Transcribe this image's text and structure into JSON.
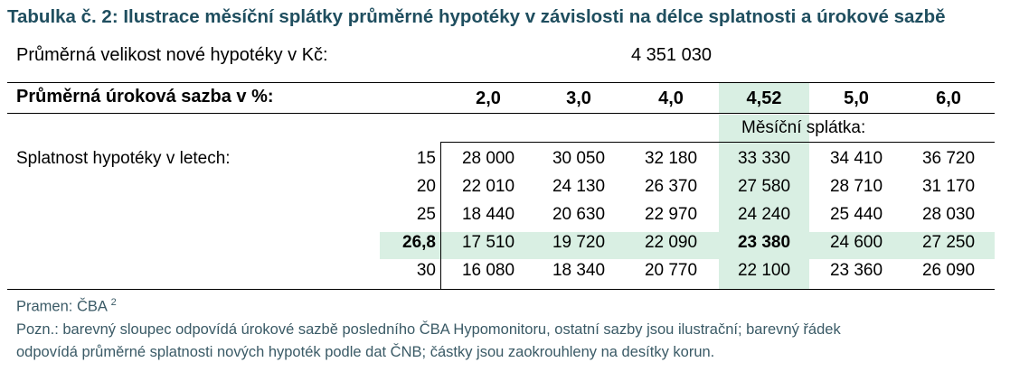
{
  "title": "Tabulka č. 2: Ilustrace měsíční splátky průměrné hypotéky v závislosti na délce splatnosti a úrokové sazbě",
  "avg_mortgage": {
    "label": "Průměrná velikost nové hypotéky v Kč:",
    "value": "4 351 030"
  },
  "rate_row": {
    "label": "Průměrná úroková sazba v %:",
    "rates": [
      "2,0",
      "3,0",
      "4,0",
      "4,52",
      "5,0",
      "6,0"
    ]
  },
  "payment_header": "Měsíční splátka:",
  "term_label": "Splatnost hypotéky v letech:",
  "rows": [
    {
      "term": "15",
      "values": [
        "28 000",
        "30 050",
        "32 180",
        "33 330",
        "34 410",
        "36 720"
      ]
    },
    {
      "term": "20",
      "values": [
        "22 010",
        "24 130",
        "26 370",
        "27 580",
        "28 710",
        "31 170"
      ]
    },
    {
      "term": "25",
      "values": [
        "18 440",
        "20 630",
        "22 970",
        "24 240",
        "25 440",
        "28 030"
      ]
    },
    {
      "term": "26,8",
      "values": [
        "17 510",
        "19 720",
        "22 090",
        "23 380",
        "24 600",
        "27 250"
      ]
    },
    {
      "term": "30",
      "values": [
        "16 080",
        "18 340",
        "20 770",
        "22 100",
        "23 360",
        "26 090"
      ]
    }
  ],
  "highlight": {
    "column_index": 3,
    "row_index": 3,
    "color": "#d9efe3"
  },
  "source": {
    "text": "Pramen: ČBA",
    "superscript": "2"
  },
  "note": [
    "Pozn.: barevný sloupec odpovídá úrokové sazbě posledního ČBA Hypomonitoru, ostatní sazby jsou ilustrační; barevný řádek",
    "odpovídá průměrné splatnosti nových hypoték podle dat ČNB; částky jsou zaokrouhleny na desítky korun."
  ],
  "colors": {
    "title": "#1f4e5f",
    "footer": "#3a5a66",
    "highlight": "#d9efe3"
  }
}
